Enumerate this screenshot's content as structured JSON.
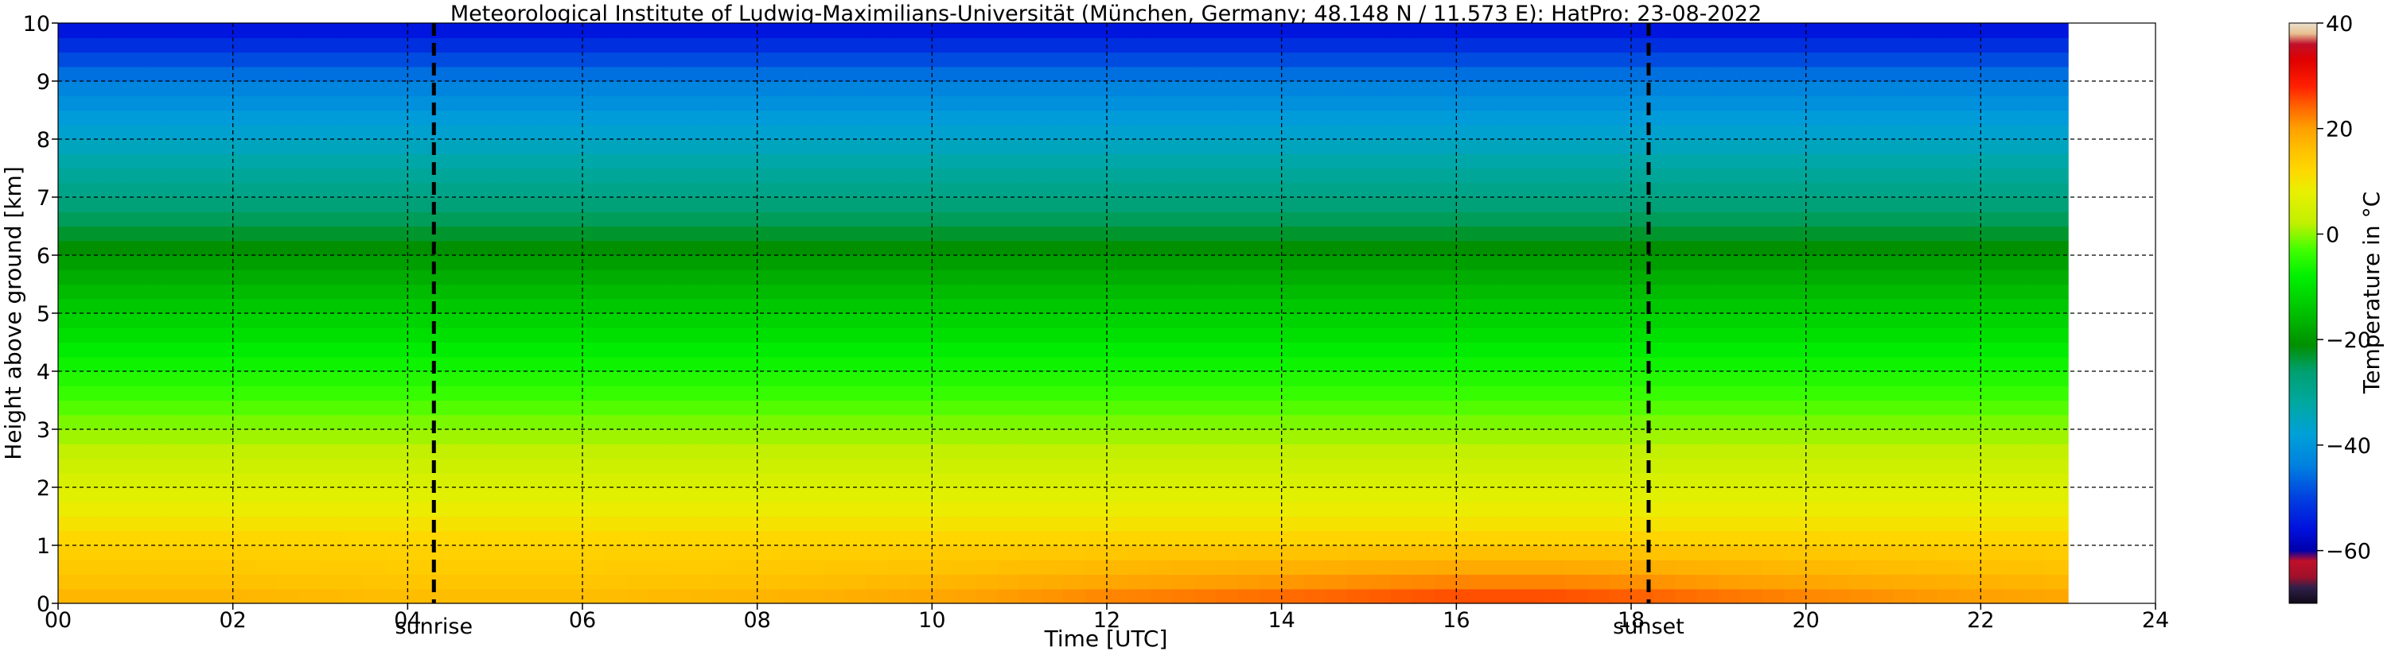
{
  "chart_data": {
    "type": "heatmap",
    "title": "Meteorological Institute of Ludwig-Maximilians-Universität (München, Germany; 48.148 N / 11.573 E):    HatPro: 23-08-2022",
    "xlabel": "Time [UTC]",
    "ylabel": "Height above ground [km]",
    "xlim": [
      0,
      24
    ],
    "ylim": [
      0,
      10
    ],
    "x_ticks": [
      "00",
      "02",
      "04",
      "06",
      "08",
      "10",
      "12",
      "14",
      "16",
      "18",
      "20",
      "22",
      "24"
    ],
    "y_ticks": [
      "0",
      "1",
      "2",
      "3",
      "4",
      "5",
      "6",
      "7",
      "8",
      "9",
      "10"
    ],
    "grid": true,
    "data_end_time": 23.0,
    "surface_temperature_by_hour": {
      "x": [
        0,
        2,
        4,
        6,
        8,
        10,
        12,
        14,
        16,
        17,
        18,
        20,
        22,
        23
      ],
      "values": [
        18,
        18,
        17,
        17,
        18,
        20,
        23,
        25,
        27,
        27,
        26,
        23,
        21,
        20
      ]
    },
    "temperature_profile_by_height": {
      "height_km": [
        0,
        0.5,
        1,
        2,
        3,
        4,
        5,
        6,
        7,
        8,
        9,
        10
      ],
      "values": [
        18,
        15,
        13,
        6,
        0,
        -6,
        -13,
        -20,
        -28,
        -36,
        -44,
        -57
      ]
    },
    "markers": [
      {
        "label": "sunrise",
        "time": 4.3
      },
      {
        "label": "sunset",
        "time": 18.2
      }
    ],
    "colorbar": {
      "label": "Temperature in $^\\circ$C",
      "range": [
        -70,
        40
      ],
      "ticks": [
        "40",
        "20",
        "0",
        "−20",
        "−40",
        "−60"
      ]
    }
  }
}
